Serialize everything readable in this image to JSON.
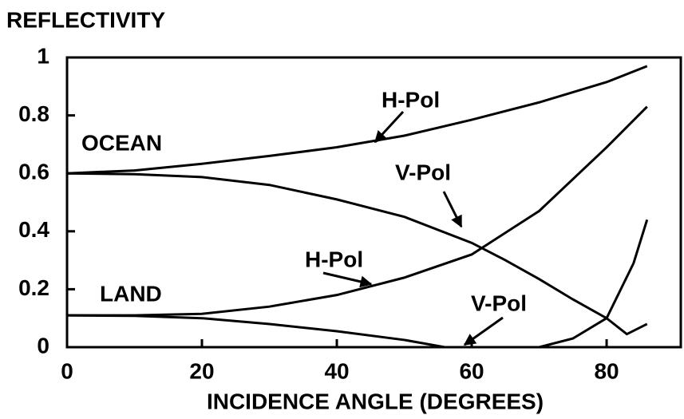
{
  "chart_data": {
    "type": "line",
    "title": "REFLECTIVITY",
    "x_label": "INCIDENCE ANGLE (DEGREES)",
    "annotations": [
      "OCEAN",
      "LAND"
    ],
    "xlim": [
      0,
      91
    ],
    "xticks": [
      0,
      20,
      40,
      60,
      80
    ],
    "ylim": [
      0,
      1
    ],
    "yticks": [
      0,
      0.2,
      0.4,
      0.6,
      0.8,
      1
    ],
    "series": [
      {
        "name": "H-Pol",
        "color": "#000000",
        "x": [
          0,
          10,
          20,
          30,
          40,
          50,
          60,
          70,
          80,
          86
        ],
        "values": [
          0.6,
          0.61,
          0.633,
          0.66,
          0.69,
          0.73,
          0.785,
          0.845,
          0.915,
          0.97
        ]
      },
      {
        "name": "V-Pol",
        "color": "#000000",
        "x": [
          0,
          10,
          20,
          30,
          40,
          50,
          60,
          65,
          70,
          75,
          80,
          83,
          86
        ],
        "values": [
          0.6,
          0.597,
          0.587,
          0.56,
          0.51,
          0.45,
          0.36,
          0.3,
          0.235,
          0.165,
          0.1,
          0.045,
          0.08
        ]
      },
      {
        "name": "H-Pol",
        "color": "#000000",
        "x": [
          0,
          10,
          20,
          30,
          40,
          50,
          60,
          70,
          80,
          86
        ],
        "values": [
          0.11,
          0.11,
          0.115,
          0.14,
          0.18,
          0.24,
          0.32,
          0.47,
          0.69,
          0.83
        ]
      },
      {
        "name": "V-Pol",
        "color": "#000000",
        "x": [
          0,
          10,
          20,
          30,
          40,
          50,
          56,
          60,
          70,
          75,
          80,
          84,
          86
        ],
        "values": [
          0.11,
          0.108,
          0.1,
          0.08,
          0.055,
          0.025,
          0,
          0,
          0,
          0.03,
          0.1,
          0.29,
          0.44
        ]
      }
    ]
  }
}
